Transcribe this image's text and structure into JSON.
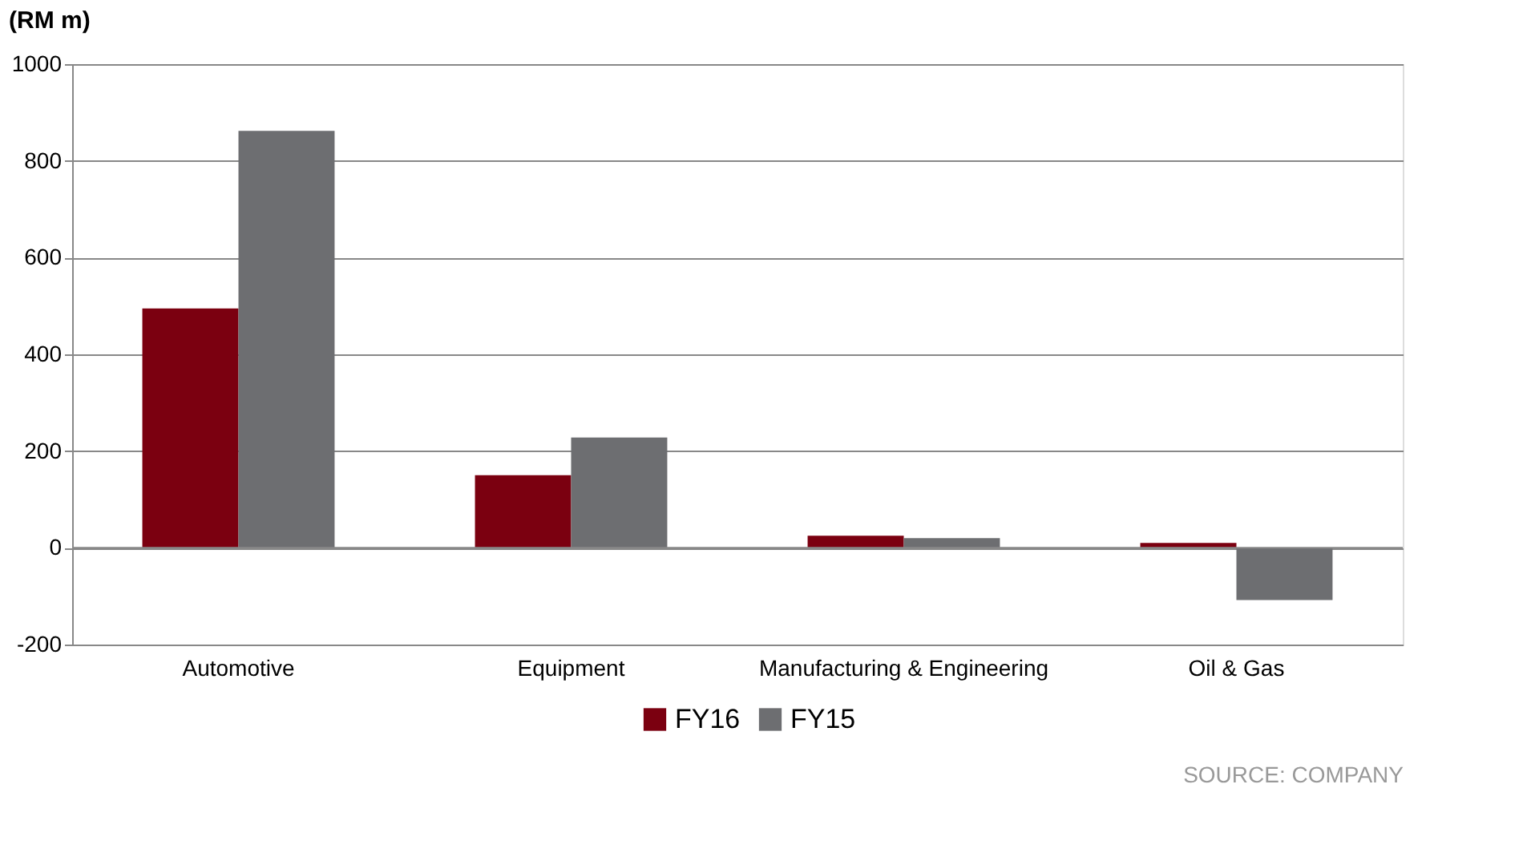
{
  "chart_data": {
    "type": "bar",
    "ylabel": "(RM m)",
    "categories": [
      "Automotive",
      "Equipment",
      "Manufacturing & Engineering",
      "Oil & Gas"
    ],
    "series": [
      {
        "name": "FY16",
        "color": "#7b0010",
        "values": [
          495,
          150,
          25,
          10
        ]
      },
      {
        "name": "FY15",
        "color": "#6d6e71",
        "values": [
          862,
          228,
          20,
          -108
        ]
      }
    ],
    "ylim": [
      -200,
      1000
    ],
    "yticks": [
      -200,
      0,
      200,
      400,
      600,
      800,
      1000
    ],
    "grid": "y",
    "legend": "bottom",
    "annotations": [
      "SOURCE: COMPANY"
    ]
  }
}
